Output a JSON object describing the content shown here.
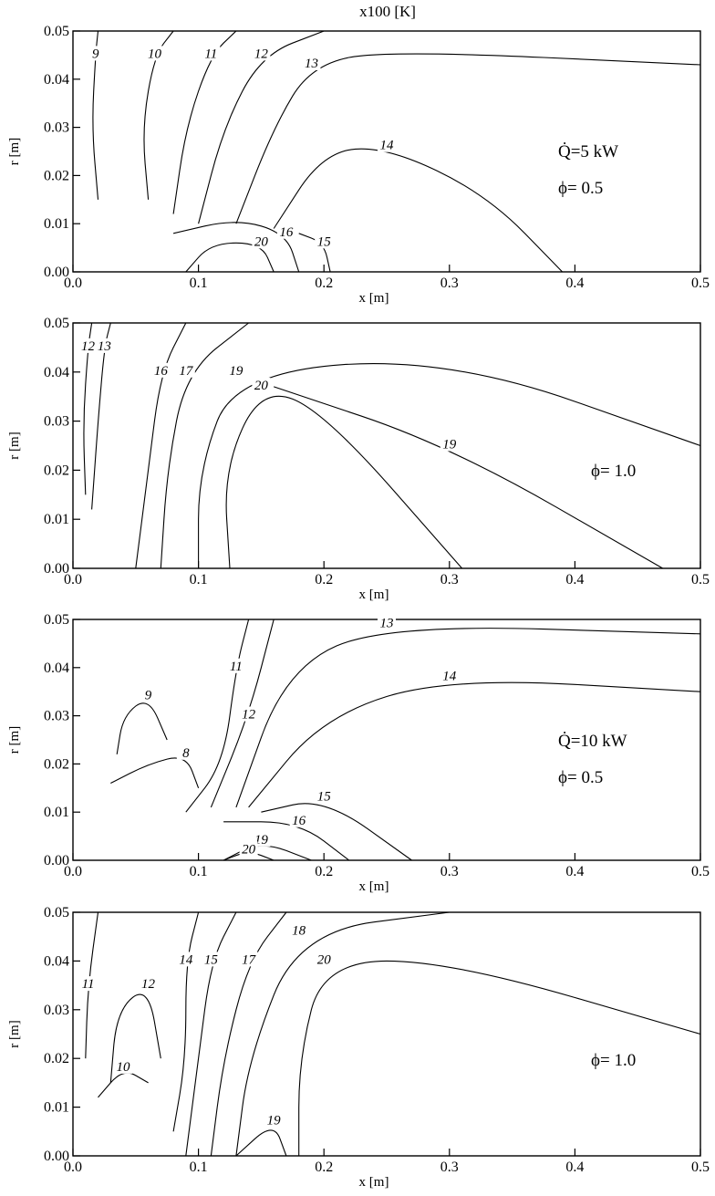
{
  "header_text": "x100 [K]",
  "chart_data": [
    {
      "type": "contour",
      "xlabel": "x [m]",
      "ylabel": "r [m]",
      "xlim": [
        0.0,
        0.5
      ],
      "ylim": [
        0.0,
        0.05
      ],
      "xticks": [
        "0.0",
        "0.1",
        "0.2",
        "0.3",
        "0.4",
        "0.5"
      ],
      "yticks": [
        "0.00",
        "0.01",
        "0.02",
        "0.03",
        "0.04",
        "0.05"
      ],
      "annotations": [
        "Q̇=5 kW",
        "ϕ= 0.5"
      ],
      "contours": [
        {
          "level": 9,
          "label": "9",
          "points": [
            [
              0.02,
              0.015
            ],
            [
              0.015,
              0.03
            ],
            [
              0.018,
              0.045
            ],
            [
              0.02,
              0.05
            ]
          ]
        },
        {
          "level": 10,
          "label": "10",
          "points": [
            [
              0.06,
              0.015
            ],
            [
              0.055,
              0.03
            ],
            [
              0.065,
              0.045
            ],
            [
              0.08,
              0.05
            ]
          ]
        },
        {
          "level": 11,
          "label": "11",
          "points": [
            [
              0.08,
              0.012
            ],
            [
              0.09,
              0.03
            ],
            [
              0.11,
              0.045
            ],
            [
              0.13,
              0.05
            ]
          ]
        },
        {
          "level": 12,
          "label": "12",
          "points": [
            [
              0.1,
              0.01
            ],
            [
              0.12,
              0.03
            ],
            [
              0.15,
              0.045
            ],
            [
              0.2,
              0.05
            ]
          ]
        },
        {
          "level": 13,
          "label": "13",
          "points": [
            [
              0.13,
              0.01
            ],
            [
              0.16,
              0.03
            ],
            [
              0.19,
              0.043
            ],
            [
              0.25,
              0.046
            ],
            [
              0.5,
              0.043
            ]
          ]
        },
        {
          "level": 14,
          "label": "14",
          "points": [
            [
              0.16,
              0.009
            ],
            [
              0.2,
              0.025
            ],
            [
              0.25,
              0.026
            ],
            [
              0.33,
              0.016
            ],
            [
              0.39,
              0.0
            ]
          ]
        },
        {
          "level": 15,
          "label": "15",
          "points": [
            [
              0.18,
              0.008
            ],
            [
              0.2,
              0.006
            ],
            [
              0.205,
              0.0
            ]
          ]
        },
        {
          "level": 16,
          "label": "16",
          "points": [
            [
              0.08,
              0.008
            ],
            [
              0.13,
              0.011
            ],
            [
              0.17,
              0.008
            ],
            [
              0.18,
              0.0
            ]
          ]
        },
        {
          "level": 20,
          "label": "20",
          "points": [
            [
              0.09,
              0.0
            ],
            [
              0.11,
              0.006
            ],
            [
              0.15,
              0.006
            ],
            [
              0.16,
              0.0
            ]
          ]
        }
      ]
    },
    {
      "type": "contour",
      "xlabel": "x [m]",
      "ylabel": "r [m]",
      "xlim": [
        0.0,
        0.5
      ],
      "ylim": [
        0.0,
        0.05
      ],
      "xticks": [
        "0.0",
        "0.1",
        "0.2",
        "0.3",
        "0.4",
        "0.5"
      ],
      "yticks": [
        "0.00",
        "0.01",
        "0.02",
        "0.03",
        "0.04",
        "0.05"
      ],
      "annotations": [
        "ϕ= 1.0"
      ],
      "contours": [
        {
          "level": 12,
          "label": "12",
          "points": [
            [
              0.01,
              0.015
            ],
            [
              0.008,
              0.03
            ],
            [
              0.012,
              0.045
            ],
            [
              0.015,
              0.05
            ]
          ]
        },
        {
          "level": 13,
          "label": "13",
          "points": [
            [
              0.015,
              0.012
            ],
            [
              0.02,
              0.03
            ],
            [
              0.025,
              0.045
            ],
            [
              0.03,
              0.05
            ]
          ]
        },
        {
          "level": 16,
          "label": "16",
          "points": [
            [
              0.05,
              0.0
            ],
            [
              0.06,
              0.02
            ],
            [
              0.07,
              0.04
            ],
            [
              0.09,
              0.05
            ]
          ]
        },
        {
          "level": 17,
          "label": "17",
          "points": [
            [
              0.07,
              0.0
            ],
            [
              0.075,
              0.02
            ],
            [
              0.09,
              0.04
            ],
            [
              0.14,
              0.05
            ]
          ]
        },
        {
          "level": 19,
          "label": "19",
          "points": [
            [
              0.1,
              0.0
            ],
            [
              0.1,
              0.02
            ],
            [
              0.13,
              0.04
            ],
            [
              0.3,
              0.043
            ],
            [
              0.5,
              0.025
            ]
          ]
        },
        {
          "level": 20,
          "label": "20",
          "points": [
            [
              0.125,
              0.0
            ],
            [
              0.12,
              0.02
            ],
            [
              0.15,
              0.037
            ],
            [
              0.2,
              0.032
            ],
            [
              0.31,
              0.0
            ]
          ]
        },
        {
          "level": 19,
          "label": "19",
          "points": [
            [
              0.16,
              0.037
            ],
            [
              0.3,
              0.025
            ],
            [
              0.47,
              0.0
            ]
          ]
        }
      ]
    },
    {
      "type": "contour",
      "xlabel": "x [m]",
      "ylabel": "r [m]",
      "xlim": [
        0.0,
        0.5
      ],
      "ylim": [
        0.0,
        0.05
      ],
      "xticks": [
        "0.0",
        "0.1",
        "0.2",
        "0.3",
        "0.4",
        "0.5"
      ],
      "yticks": [
        "0.00",
        "0.01",
        "0.02",
        "0.03",
        "0.04",
        "0.05"
      ],
      "annotations": [
        "Q̇=10 kW",
        "ϕ= 0.5"
      ],
      "contours": [
        {
          "level": 9,
          "label": "9",
          "points": [
            [
              0.035,
              0.022
            ],
            [
              0.04,
              0.03
            ],
            [
              0.06,
              0.034
            ],
            [
              0.075,
              0.025
            ]
          ]
        },
        {
          "level": 8,
          "label": "8",
          "points": [
            [
              0.03,
              0.016
            ],
            [
              0.06,
              0.02
            ],
            [
              0.09,
              0.022
            ],
            [
              0.1,
              0.015
            ]
          ]
        },
        {
          "level": 11,
          "label": "11",
          "points": [
            [
              0.09,
              0.01
            ],
            [
              0.12,
              0.02
            ],
            [
              0.13,
              0.04
            ],
            [
              0.14,
              0.05
            ]
          ]
        },
        {
          "level": 12,
          "label": "12",
          "points": [
            [
              0.11,
              0.011
            ],
            [
              0.14,
              0.03
            ],
            [
              0.16,
              0.05
            ]
          ]
        },
        {
          "level": 13,
          "label": "13",
          "points": [
            [
              0.13,
              0.011
            ],
            [
              0.17,
              0.04
            ],
            [
              0.25,
              0.049
            ],
            [
              0.5,
              0.047
            ]
          ]
        },
        {
          "level": 14,
          "label": "14",
          "points": [
            [
              0.14,
              0.011
            ],
            [
              0.2,
              0.03
            ],
            [
              0.3,
              0.038
            ],
            [
              0.5,
              0.035
            ]
          ]
        },
        {
          "level": 15,
          "label": "15",
          "points": [
            [
              0.15,
              0.01
            ],
            [
              0.2,
              0.013
            ],
            [
              0.27,
              0.0
            ]
          ]
        },
        {
          "level": 16,
          "label": "16",
          "points": [
            [
              0.12,
              0.008
            ],
            [
              0.18,
              0.008
            ],
            [
              0.22,
              0.0
            ]
          ]
        },
        {
          "level": 19,
          "label": "19",
          "points": [
            [
              0.12,
              0.0
            ],
            [
              0.15,
              0.004
            ],
            [
              0.19,
              0.0
            ]
          ]
        },
        {
          "level": 20,
          "label": "20",
          "points": [
            [
              0.12,
              0.0
            ],
            [
              0.14,
              0.002
            ],
            [
              0.16,
              0.0
            ]
          ]
        }
      ]
    },
    {
      "type": "contour",
      "xlabel": "x [m]",
      "ylabel": "r [m]",
      "xlim": [
        0.0,
        0.5
      ],
      "ylim": [
        0.0,
        0.05
      ],
      "xticks": [
        "0.0",
        "0.1",
        "0.2",
        "0.3",
        "0.4",
        "0.5"
      ],
      "yticks": [
        "0.00",
        "0.01",
        "0.02",
        "0.03",
        "0.04",
        "0.05"
      ],
      "annotations": [
        "ϕ= 1.0"
      ],
      "contours": [
        {
          "level": 10,
          "label": "10",
          "points": [
            [
              0.02,
              0.012
            ],
            [
              0.04,
              0.018
            ],
            [
              0.06,
              0.015
            ]
          ]
        },
        {
          "level": 11,
          "label": "11",
          "points": [
            [
              0.01,
              0.02
            ],
            [
              0.012,
              0.035
            ],
            [
              0.02,
              0.05
            ]
          ]
        },
        {
          "level": 12,
          "label": "12",
          "points": [
            [
              0.03,
              0.015
            ],
            [
              0.035,
              0.03
            ],
            [
              0.06,
              0.035
            ],
            [
              0.07,
              0.02
            ]
          ]
        },
        {
          "level": 14,
          "label": "14",
          "points": [
            [
              0.08,
              0.005
            ],
            [
              0.09,
              0.02
            ],
            [
              0.09,
              0.04
            ],
            [
              0.1,
              0.05
            ]
          ]
        },
        {
          "level": 15,
          "label": "15",
          "points": [
            [
              0.09,
              0.0
            ],
            [
              0.1,
              0.02
            ],
            [
              0.11,
              0.04
            ],
            [
              0.13,
              0.05
            ]
          ]
        },
        {
          "level": 17,
          "label": "17",
          "points": [
            [
              0.11,
              0.0
            ],
            [
              0.12,
              0.02
            ],
            [
              0.14,
              0.04
            ],
            [
              0.17,
              0.05
            ]
          ]
        },
        {
          "level": 18,
          "label": "18",
          "points": [
            [
              0.13,
              0.0
            ],
            [
              0.14,
              0.02
            ],
            [
              0.18,
              0.046
            ],
            [
              0.3,
              0.05
            ]
          ]
        },
        {
          "level": 20,
          "label": "20",
          "points": [
            [
              0.18,
              0.0
            ],
            [
              0.18,
              0.02
            ],
            [
              0.2,
              0.04
            ],
            [
              0.3,
              0.04
            ],
            [
              0.5,
              0.025
            ]
          ]
        },
        {
          "level": 19,
          "label": "19",
          "points": [
            [
              0.13,
              0.0
            ],
            [
              0.16,
              0.007
            ],
            [
              0.17,
              0.0
            ]
          ]
        }
      ]
    }
  ]
}
